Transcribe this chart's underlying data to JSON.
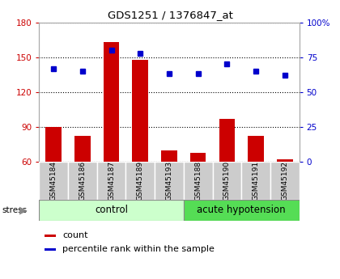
{
  "title": "GDS1251 / 1376847_at",
  "samples": [
    "GSM45184",
    "GSM45186",
    "GSM45187",
    "GSM45189",
    "GSM45193",
    "GSM45188",
    "GSM45190",
    "GSM45191",
    "GSM45192"
  ],
  "red_values": [
    90,
    82,
    163,
    148,
    70,
    68,
    97,
    82,
    62
  ],
  "blue_percentile": [
    67,
    65,
    80,
    78,
    63,
    63,
    70,
    65,
    62
  ],
  "red_color": "#cc0000",
  "blue_color": "#0000cc",
  "ylim_left": [
    60,
    180
  ],
  "ylim_right": [
    0,
    100
  ],
  "yticks_left": [
    60,
    90,
    120,
    150,
    180
  ],
  "yticks_right": [
    0,
    25,
    50,
    75,
    100
  ],
  "control_count": 5,
  "acute_count": 4,
  "control_label": "control",
  "acute_label": "acute hypotension",
  "stress_label": "stress",
  "legend_count": "count",
  "legend_percentile": "percentile rank within the sample",
  "control_light_color": "#ccffcc",
  "acute_dark_color": "#55dd55",
  "bar_bottom": 60,
  "xlabel_gray_bg": "#cccccc"
}
